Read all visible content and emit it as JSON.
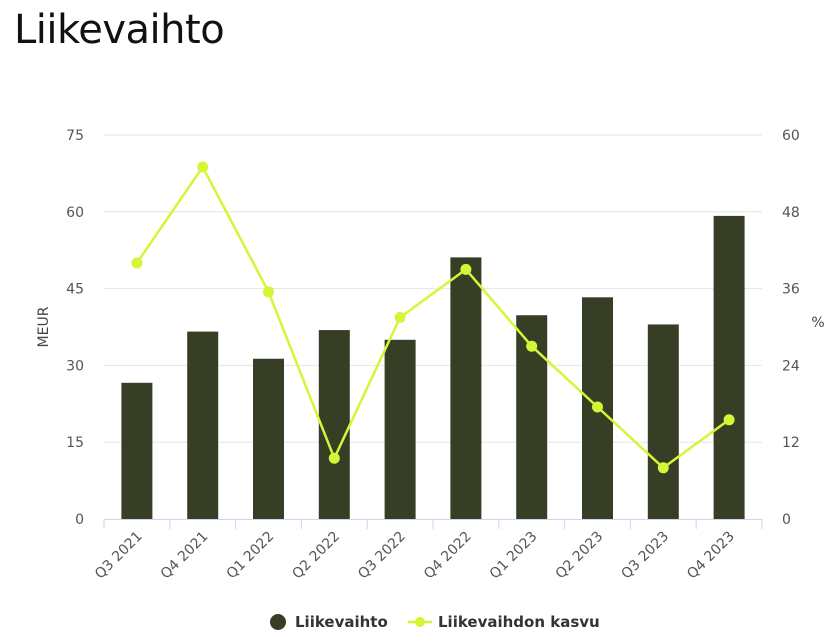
{
  "page_title": "Liikevaihto",
  "chart_data": {
    "type": "bar",
    "categories": [
      "Q3 2021",
      "Q4 2021",
      "Q1 2022",
      "Q2 2022",
      "Q3 2022",
      "Q4 2022",
      "Q1 2023",
      "Q2 2023",
      "Q3 2023",
      "Q4 2023"
    ],
    "series": [
      {
        "name": "Liikevaihto",
        "type": "bar",
        "axis": "left",
        "color": "#363f26",
        "values": [
          26.6,
          36.6,
          31.3,
          36.9,
          35.0,
          51.1,
          39.8,
          43.3,
          38.0,
          59.2
        ]
      },
      {
        "name": "Liikevaihdon kasvu",
        "type": "line",
        "axis": "right",
        "color": "#d6f537",
        "values": [
          40.0,
          55.0,
          35.5,
          9.5,
          31.5,
          39.0,
          27.0,
          17.5,
          8.0,
          15.5
        ]
      }
    ],
    "ylabel": "MEUR",
    "ylim": [
      0,
      75
    ],
    "yticks": [
      "0",
      "15",
      "30",
      "45",
      "60",
      "75"
    ],
    "y2label": "%",
    "y2lim": [
      0,
      60
    ],
    "y2ticks": [
      "0",
      "12",
      "24",
      "36",
      "48",
      "60"
    ],
    "grid": true,
    "legend_position": "bottom-center"
  }
}
